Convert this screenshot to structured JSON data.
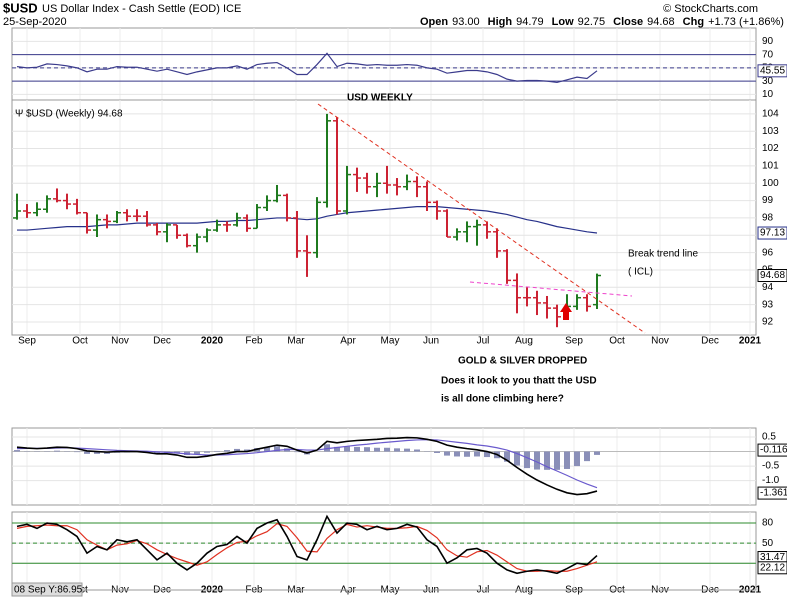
{
  "header": {
    "symbol": "$USD",
    "name": "US Dollar Index - Cash Settle (EOD) ICE",
    "credit": "© StockCharts.com",
    "date": "25-Sep-2020",
    "quote": [
      {
        "label": "Open",
        "value": "93.00"
      },
      {
        "label": "High",
        "value": "94.79"
      },
      {
        "label": "Low",
        "value": "92.75"
      },
      {
        "label": "Close",
        "value": "94.68"
      },
      {
        "label": "Chg",
        "value": "+1.73 (+1.86%)"
      }
    ]
  },
  "chart_data": [
    {
      "type": "line",
      "ylim": [
        0,
        100
      ],
      "yticks": [
        90,
        70,
        50,
        30,
        10
      ],
      "levels": [
        70,
        30
      ],
      "midline": 50,
      "color": "#3b3b8c",
      "values": [
        52,
        50,
        51,
        56,
        55,
        53,
        50,
        44,
        48,
        48,
        52,
        51,
        51,
        48,
        45,
        48,
        44,
        40,
        44,
        47,
        50,
        50,
        53,
        48,
        55,
        57,
        58,
        50,
        40,
        40,
        55,
        72,
        52,
        57,
        56,
        54,
        55,
        54,
        54,
        55,
        54,
        50,
        48,
        42,
        44,
        46,
        46,
        44,
        40,
        33,
        30,
        31,
        31,
        30,
        28,
        32,
        36,
        34,
        45.55
      ]
    },
    {
      "type": "ohlc",
      "legend": "$USD (Weekly) 94.68",
      "ylim": [
        91.25,
        104.8
      ],
      "yticks": [
        92,
        93,
        94,
        95,
        96,
        97,
        98,
        99,
        100,
        101,
        102,
        103,
        104
      ],
      "up_color": "#1f7a1f",
      "down_color": "#cc2233",
      "xticklabels": [
        "Sep",
        "Oct",
        "Nov",
        "Dec",
        "2020",
        "Feb",
        "Mar",
        "Apr",
        "May",
        "Jun",
        "Jul",
        "Aug",
        "Sep",
        "Oct",
        "Nov",
        "Dec",
        "2021"
      ],
      "annotations": [
        "USD WEEKLY",
        "Break trend line",
        "( ICL)",
        "GOLD & SILVER DROPPED",
        "Does it look to you thatt the USD",
        "is all done climbing here?"
      ],
      "open": [
        98.0,
        98.4,
        98.3,
        98.5,
        99.1,
        99.0,
        98.8,
        98.3,
        97.3,
        97.9,
        97.8,
        98.3,
        98.1,
        98.1,
        97.6,
        97.2,
        97.6,
        97.0,
        96.4,
        96.9,
        97.3,
        97.6,
        97.6,
        98.0,
        97.4,
        98.6,
        99.0,
        99.3,
        98.0,
        96.1,
        96.0,
        98.9,
        103.6,
        98.4,
        100.5,
        100.3,
        99.8,
        100.0,
        99.9,
        99.8,
        100.1,
        99.8,
        98.9,
        98.4,
        96.9,
        97.2,
        97.5,
        97.6,
        97.2,
        96.1,
        94.4,
        93.4,
        93.4,
        93.1,
        92.8,
        92.3,
        92.9,
        93.4,
        93.0
      ],
      "high": [
        99.4,
        98.8,
        98.9,
        99.3,
        99.7,
        99.4,
        99.1,
        98.3,
        98.2,
        98.2,
        98.4,
        98.5,
        98.5,
        98.4,
        97.7,
        97.7,
        97.6,
        97.1,
        97.1,
        97.4,
        97.9,
        97.8,
        98.3,
        98.2,
        98.8,
        99.3,
        99.9,
        99.4,
        98.4,
        97.0,
        99.2,
        104.0,
        103.8,
        101.0,
        100.9,
        100.6,
        100.6,
        101.0,
        100.3,
        100.5,
        100.4,
        100.1,
        99.0,
        98.5,
        97.4,
        97.8,
        97.9,
        97.8,
        97.4,
        96.2,
        94.8,
        94.0,
        93.8,
        93.5,
        93.0,
        93.6,
        93.6,
        93.6,
        94.79
      ],
      "low": [
        97.9,
        98.0,
        98.1,
        98.3,
        98.9,
        98.5,
        98.2,
        97.1,
        96.9,
        97.4,
        97.7,
        97.8,
        97.8,
        97.5,
        97.0,
        96.6,
        96.8,
        96.3,
        96.0,
        96.6,
        97.2,
        97.2,
        97.5,
        97.2,
        97.4,
        98.4,
        98.9,
        97.8,
        95.7,
        94.6,
        95.7,
        98.6,
        98.2,
        98.2,
        99.5,
        99.4,
        99.2,
        99.4,
        99.3,
        99.6,
        99.2,
        98.4,
        97.9,
        96.9,
        96.7,
        96.6,
        96.4,
        96.8,
        95.7,
        94.2,
        92.5,
        92.9,
        92.4,
        92.2,
        91.7,
        92.2,
        92.7,
        92.6,
        92.75
      ],
      "close": [
        98.4,
        98.3,
        98.5,
        99.1,
        99.0,
        98.8,
        98.3,
        97.3,
        97.9,
        97.8,
        98.3,
        98.1,
        98.1,
        97.6,
        97.2,
        97.6,
        97.0,
        96.4,
        96.9,
        97.3,
        97.6,
        97.6,
        98.0,
        97.4,
        98.6,
        99.0,
        99.3,
        98.0,
        96.1,
        96.0,
        98.9,
        103.6,
        98.4,
        100.5,
        100.3,
        99.8,
        100.0,
        99.9,
        99.8,
        100.1,
        99.8,
        98.9,
        98.4,
        96.9,
        97.2,
        97.5,
        97.6,
        97.2,
        96.1,
        94.4,
        93.4,
        93.4,
        93.1,
        92.8,
        92.3,
        92.9,
        93.4,
        92.9,
        94.68
      ],
      "ma": {
        "color": "#27318a",
        "values": [
          97.3,
          97.3,
          97.35,
          97.4,
          97.45,
          97.5,
          97.5,
          97.5,
          97.55,
          97.6,
          97.6,
          97.65,
          97.7,
          97.7,
          97.7,
          97.7,
          97.7,
          97.7,
          97.7,
          97.75,
          97.8,
          97.8,
          97.85,
          97.85,
          97.9,
          97.95,
          98.0,
          98.0,
          97.95,
          97.9,
          97.95,
          98.1,
          98.2,
          98.3,
          98.35,
          98.4,
          98.45,
          98.5,
          98.55,
          98.6,
          98.65,
          98.65,
          98.65,
          98.6,
          98.55,
          98.5,
          98.45,
          98.4,
          98.3,
          98.2,
          98.05,
          97.9,
          97.8,
          97.65,
          97.5,
          97.4,
          97.3,
          97.2,
          97.13
        ]
      }
    },
    {
      "type": "macd",
      "ylim": [
        -1.84,
        0.81
      ],
      "yticks": [
        0.5,
        -0.5,
        {
          "value": -1,
          "label": "-1.0"
        }
      ],
      "macd": {
        "color": "#000000",
        "values": [
          0.15,
          0.12,
          0.1,
          0.12,
          0.15,
          0.14,
          0.1,
          0.02,
          0,
          -0.02,
          0,
          0,
          0,
          -0.03,
          -0.08,
          -0.08,
          -0.12,
          -0.2,
          -0.2,
          -0.16,
          -0.1,
          -0.06,
          0,
          0,
          0.08,
          0.15,
          0.22,
          0.18,
          0.05,
          -0.05,
          0.05,
          0.35,
          0.3,
          0.35,
          0.38,
          0.4,
          0.42,
          0.45,
          0.46,
          0.48,
          0.47,
          0.42,
          0.35,
          0.22,
          0.15,
          0.1,
          0.06,
          0,
          -0.1,
          -0.3,
          -0.55,
          -0.78,
          -0.98,
          -1.15,
          -1.3,
          -1.42,
          -1.48,
          -1.45,
          -1.361
        ]
      },
      "signal": {
        "color": "#6a5acd",
        "values": [
          0.1,
          0.11,
          0.11,
          0.11,
          0.12,
          0.13,
          0.12,
          0.1,
          0.08,
          0.06,
          0.04,
          0.03,
          0.02,
          0.01,
          -0.01,
          -0.03,
          -0.05,
          -0.08,
          -0.1,
          -0.12,
          -0.12,
          -0.11,
          -0.09,
          -0.07,
          -0.04,
          0,
          0.04,
          0.07,
          0.07,
          0.05,
          0.05,
          0.1,
          0.14,
          0.18,
          0.22,
          0.25,
          0.29,
          0.32,
          0.35,
          0.38,
          0.4,
          0.41,
          0.4,
          0.36,
          0.32,
          0.28,
          0.23,
          0.19,
          0.13,
          0.05,
          -0.07,
          -0.21,
          -0.36,
          -0.52,
          -0.67,
          -0.82,
          -0.98,
          -1.12,
          -1.245
        ]
      },
      "histogram": {
        "color": "#8a8fb8",
        "values": [
          0.05,
          0.01,
          -0.01,
          0.01,
          0.03,
          0.01,
          -0.02,
          -0.08,
          -0.08,
          -0.08,
          -0.04,
          -0.03,
          -0.02,
          -0.04,
          -0.07,
          -0.05,
          -0.07,
          -0.12,
          -0.1,
          -0.04,
          0.02,
          0.05,
          0.09,
          0.07,
          0.12,
          0.15,
          0.18,
          0.11,
          -0.02,
          -0.1,
          0,
          0.25,
          0.16,
          0.17,
          0.16,
          0.15,
          0.13,
          0.13,
          0.11,
          0.1,
          0.07,
          0.01,
          -0.05,
          -0.14,
          -0.17,
          -0.18,
          -0.17,
          -0.19,
          -0.23,
          -0.35,
          -0.48,
          -0.57,
          -0.62,
          -0.63,
          -0.63,
          -0.6,
          -0.5,
          -0.33,
          -0.116
        ]
      }
    },
    {
      "type": "stochastic",
      "ylim": [
        -20,
        92
      ],
      "yticks": [
        80,
        50,
        20
      ],
      "levels": [
        80,
        20
      ],
      "midline": 50,
      "readout": "08 Sep Y:86.95",
      "k": {
        "color": "#000000",
        "values": [
          75,
          78,
          72,
          80,
          78,
          70,
          60,
          35,
          45,
          40,
          55,
          52,
          55,
          40,
          25,
          35,
          20,
          10,
          20,
          35,
          45,
          48,
          60,
          50,
          72,
          80,
          85,
          60,
          30,
          25,
          55,
          90,
          65,
          80,
          78,
          70,
          75,
          70,
          72,
          78,
          74,
          55,
          45,
          20,
          28,
          40,
          42,
          35,
          20,
          10,
          5,
          8,
          10,
          8,
          5,
          12,
          20,
          18,
          31.47
        ]
      },
      "d": {
        "color": "#e03020",
        "values": [
          72,
          75,
          76,
          77,
          76,
          76,
          70,
          55,
          47,
          40,
          47,
          49,
          54,
          49,
          40,
          33,
          27,
          22,
          17,
          22,
          33,
          43,
          51,
          53,
          61,
          67,
          79,
          75,
          58,
          38,
          37,
          57,
          70,
          78,
          74,
          76,
          74,
          72,
          72,
          73,
          75,
          69,
          58,
          40,
          31,
          29,
          37,
          39,
          32,
          22,
          12,
          8,
          8,
          9,
          8,
          8,
          12,
          17,
          22.12
        ]
      }
    }
  ]
}
